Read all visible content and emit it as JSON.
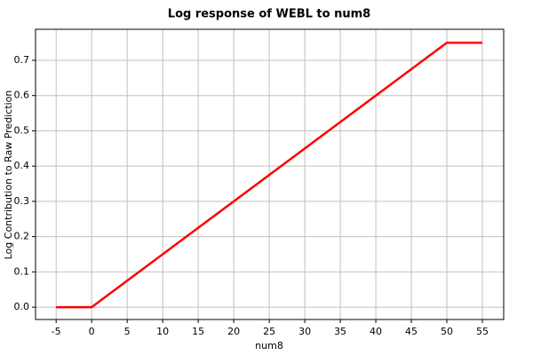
{
  "chart_data": {
    "type": "line",
    "title": "Log response of WEBL to num8",
    "x_label": "num8",
    "y_label": "Log Contribution to Raw Prediction",
    "x": [
      -5,
      0,
      50,
      55
    ],
    "series": [
      {
        "name": "WEBL",
        "color": "#ff0000",
        "values": [
          0,
          0,
          0.75,
          0.75
        ]
      }
    ],
    "xlim": [
      -7.9,
      58
    ],
    "ylim": [
      -0.035,
      0.788
    ],
    "xticks": [
      -5,
      0,
      5,
      10,
      15,
      20,
      25,
      30,
      35,
      40,
      45,
      50,
      55
    ],
    "yticks": [
      {
        "value": 0,
        "label": "0.0"
      },
      0.1,
      0.2,
      0.3,
      0.4,
      0.5,
      0.6,
      0.7
    ],
    "grid": true,
    "legend": false
  }
}
